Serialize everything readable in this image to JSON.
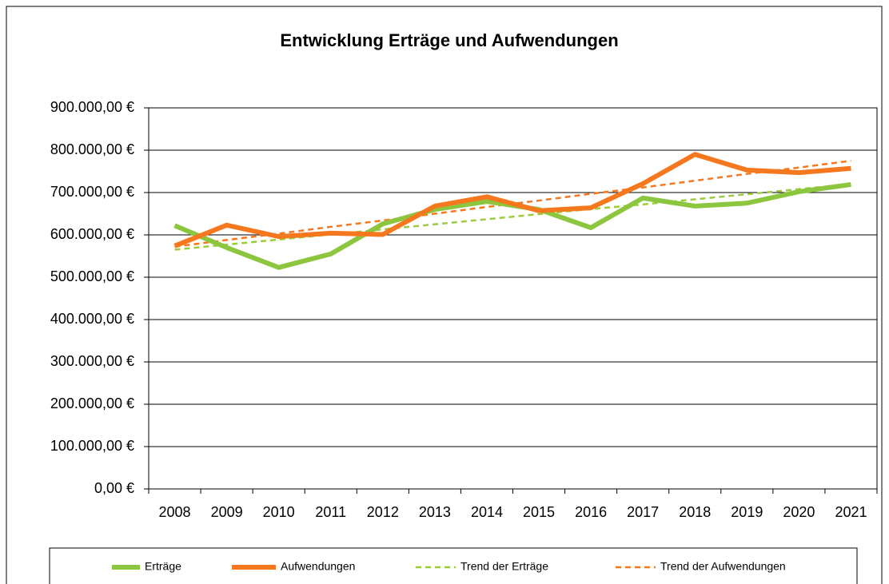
{
  "chart_data": {
    "type": "line",
    "title": "Entwicklung Erträge und Aufwendungen",
    "categories": [
      "2008",
      "2009",
      "2010",
      "2011",
      "2012",
      "2013",
      "2014",
      "2015",
      "2016",
      "2017",
      "2018",
      "2019",
      "2020",
      "2021"
    ],
    "series": [
      {
        "name": "Erträge",
        "color": "#8cc63e",
        "dashed": false,
        "values": [
          622000,
          570000,
          523000,
          555000,
          626000,
          660000,
          679000,
          660000,
          617000,
          687000,
          668000,
          675000,
          702000,
          719000
        ]
      },
      {
        "name": "Aufwendungen",
        "color": "#f5781f",
        "dashed": false,
        "values": [
          574000,
          623000,
          596000,
          604000,
          601000,
          668000,
          690000,
          657000,
          664000,
          721000,
          790000,
          753000,
          747000,
          757000
        ]
      },
      {
        "name": "Trend der Erträge",
        "color": "#9ccc3c",
        "dashed": true,
        "values": [
          565000,
          577000,
          589000,
          601000,
          613000,
          625000,
          637000,
          649000,
          661000,
          672000,
          684000,
          696000,
          708000,
          720000
        ]
      },
      {
        "name": "Trend der Aufwendungen",
        "color": "#f5781f",
        "dashed": true,
        "values": [
          572000,
          588000,
          603000,
          619000,
          634000,
          650000,
          666000,
          681000,
          697000,
          712000,
          728000,
          744000,
          759000,
          775000
        ]
      }
    ],
    "ylim": [
      0,
      900000
    ],
    "yticks": [
      {
        "value": 0,
        "label": "0,00 €"
      },
      {
        "value": 100000,
        "label": "100.000,00 €"
      },
      {
        "value": 200000,
        "label": "200.000,00 €"
      },
      {
        "value": 300000,
        "label": "300.000,00 €"
      },
      {
        "value": 400000,
        "label": "400.000,00 €"
      },
      {
        "value": 500000,
        "label": "500.000,00 €"
      },
      {
        "value": 600000,
        "label": "600.000,00 €"
      },
      {
        "value": 700000,
        "label": "700.000,00 €"
      },
      {
        "value": 800000,
        "label": "800.000,00 €"
      },
      {
        "value": 900000,
        "label": "900.000,00 €"
      }
    ],
    "grid": true,
    "legend": "bottom"
  }
}
